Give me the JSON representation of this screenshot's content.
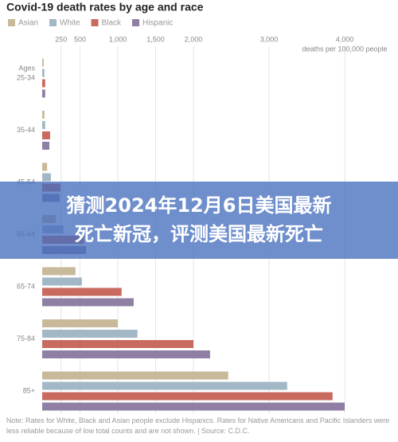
{
  "chart_data": {
    "type": "bar",
    "orientation": "horizontal",
    "title": "Covid-19 death rates by age and race",
    "category_header": "Ages",
    "categories": [
      "25-34",
      "35-44",
      "45-54",
      "55-64",
      "65-74",
      "75-84",
      "85+"
    ],
    "series": [
      {
        "name": "Asian",
        "color": "#c9b99b",
        "values": [
          20,
          30,
          65,
          180,
          440,
          1000,
          2460
        ]
      },
      {
        "name": "White",
        "color": "#a3b8c6",
        "values": [
          30,
          40,
          115,
          280,
          525,
          1260,
          3240
        ]
      },
      {
        "name": "Black",
        "color": "#c96a5f",
        "values": [
          40,
          105,
          240,
          550,
          1050,
          2000,
          3840
        ]
      },
      {
        "name": "Hispanic",
        "color": "#907fa4",
        "values": [
          40,
          95,
          230,
          580,
          1210,
          2220,
          4000
        ]
      }
    ],
    "xlim": [
      0,
      4000
    ],
    "xticks": [
      250,
      500,
      {
        "value": 1000,
        "label": "1,000"
      },
      {
        "value": 1500,
        "label": "1,500"
      },
      {
        "value": 2000,
        "label": "2,000"
      },
      {
        "value": 3000,
        "label": "3,000"
      },
      {
        "value": 4000,
        "label": "4,000"
      }
    ],
    "xlabel": "deaths per 100,000 people",
    "grid": true,
    "note": "Note: Rates for White, Black and Asian people exclude Hispanics. Rates for Native Americans and Pacific Islanders were less reliable because of low total counts and are not shown. | Source: C.D.C."
  },
  "overlay": {
    "lines": [
      "猜测2024年12月6日美国最新",
      "死亡新冠，评测美国最新死亡"
    ]
  }
}
